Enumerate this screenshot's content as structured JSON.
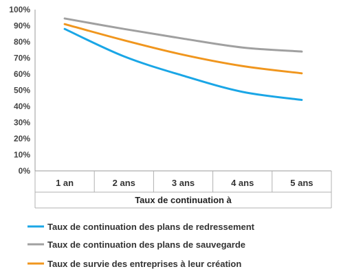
{
  "chart_data": {
    "type": "line",
    "categories": [
      "1 an",
      "2 ans",
      "3 ans",
      "4 ans",
      "5 ans"
    ],
    "xlabel": "Taux de continuation à",
    "ylabel": "",
    "ylim": [
      0,
      100
    ],
    "yticks": [
      "0%",
      "10%",
      "20%",
      "30%",
      "40%",
      "50%",
      "60%",
      "70%",
      "80%",
      "90%",
      "100%"
    ],
    "grid": false,
    "legend_position": "bottom",
    "series": [
      {
        "name": "Taux de continuation des plans de redressement",
        "color": "#1aa6e6",
        "values": [
          88,
          71,
          59,
          49,
          44
        ]
      },
      {
        "name": "Taux de continuation des plans de sauvegarde",
        "color": "#a0a0a0",
        "values": [
          94.5,
          88,
          82,
          76.5,
          74
        ]
      },
      {
        "name": "Taux de survie des entreprises à leur création",
        "color": "#f0961e",
        "values": [
          91,
          81,
          72,
          65,
          60.5
        ]
      }
    ]
  }
}
